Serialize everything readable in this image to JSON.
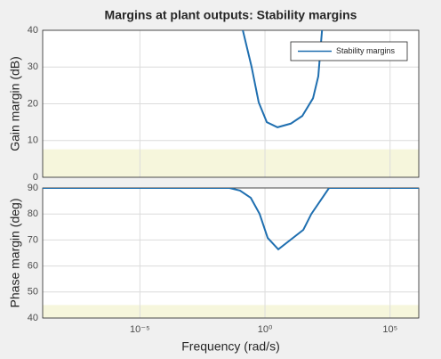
{
  "chart_data": [
    {
      "type": "line",
      "title": "Margins at plant outputs: Stability margins",
      "ylabel": "Gain margin (dB)",
      "xscale": "log",
      "xlim": [
        1.3e-09,
        1400000.0
      ],
      "ylim": [
        0,
        40
      ],
      "yticks": [
        0,
        10,
        20,
        30,
        40
      ],
      "xticks": [
        {
          "value": 1e-05,
          "label": "10⁻⁵"
        },
        {
          "value": 1,
          "label": "10⁰"
        },
        {
          "value": 100000.0,
          "label": "10⁵"
        }
      ],
      "grid": true,
      "legend": "upper right",
      "shaded_region": [
        0,
        7.6
      ],
      "shade_color": "#f6f6dc",
      "series": [
        {
          "name": "Stability margins",
          "color": "#1f6fb0",
          "x": [
            0.13,
            0.29,
            0.56,
            1.18,
            3.16,
            10.7,
            31,
            83,
            135,
            190
          ],
          "values": [
            40,
            30.1,
            20.4,
            15,
            13.6,
            14.6,
            16.7,
            21.5,
            27.5,
            40
          ]
        }
      ]
    },
    {
      "type": "line",
      "ylabel": "Phase margin (deg)",
      "xlabel": "Frequency  (rad/s)",
      "xscale": "log",
      "xlim": [
        1.3e-09,
        1400000.0
      ],
      "ylim": [
        40,
        90
      ],
      "yticks": [
        40,
        50,
        60,
        70,
        80,
        90
      ],
      "xticks": [
        {
          "value": 1e-05,
          "label": "10⁻⁵"
        },
        {
          "value": 1,
          "label": "10⁰"
        },
        {
          "value": 100000.0,
          "label": "10⁵"
        }
      ],
      "grid": true,
      "shaded_region": [
        40,
        45
      ],
      "shade_color": "#f6f6dc",
      "series": [
        {
          "color": "#1f6fb0",
          "x": [
            1.3e-09,
            0.038,
            0.1,
            0.27,
            0.61,
            1.28,
            3.4,
            34,
            71,
            363,
            1400000.0
          ],
          "values": [
            90,
            90,
            89,
            86.2,
            80,
            70.8,
            66.4,
            73.9,
            80,
            90,
            90
          ]
        }
      ]
    }
  ]
}
